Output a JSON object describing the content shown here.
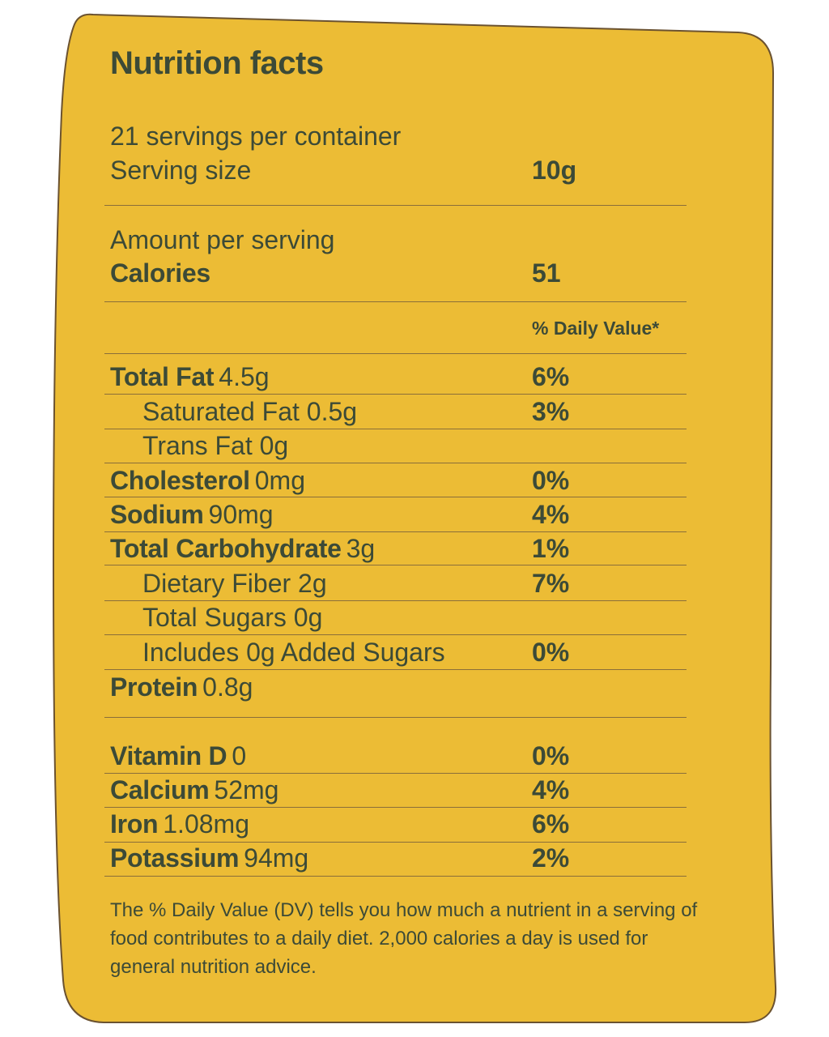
{
  "title": "Nutrition facts",
  "servings_per_container": "21 servings per container",
  "serving_size": {
    "label": "Serving size",
    "value": "10g"
  },
  "amount_per_serving": "Amount per serving",
  "calories": {
    "label": "Calories",
    "value": "51"
  },
  "daily_value_header": "% Daily Value*",
  "nutrients": [
    {
      "name": "Total Fat",
      "amount": "4.5g",
      "dv": "6%"
    },
    {
      "name": "Saturated Fat 0.5g",
      "amount": "",
      "dv": "3%"
    },
    {
      "name": "Trans Fat 0g",
      "amount": "",
      "dv": ""
    },
    {
      "name": "Cholesterol",
      "amount": "0mg",
      "dv": "0%"
    },
    {
      "name": "Sodium",
      "amount": "90mg",
      "dv": "4%"
    },
    {
      "name": "Total Carbohydrate",
      "amount": "3g",
      "dv": "1%"
    },
    {
      "name": "Dietary Fiber 2g",
      "amount": "",
      "dv": "7%"
    },
    {
      "name": "Total Sugars 0g",
      "amount": "",
      "dv": ""
    },
    {
      "name": "Includes 0g Added Sugars",
      "amount": "",
      "dv": "0%"
    },
    {
      "name": "Protein",
      "amount": "0.8g",
      "dv": ""
    }
  ],
  "vitamins": [
    {
      "name": "Vitamin D",
      "amount": "0",
      "dv": "0%"
    },
    {
      "name": "Calcium",
      "amount": "52mg",
      "dv": "4%"
    },
    {
      "name": "Iron",
      "amount": "1.08mg",
      "dv": "6%"
    },
    {
      "name": "Potassium",
      "amount": "94mg",
      "dv": "2%"
    }
  ],
  "footnote": "The % Daily Value (DV) tells you how much a nutrient in a serving of food contributes to a daily diet. 2,000 calories a day is used for general nutrition advice.",
  "colors": {
    "card_fill": "#ecbc35",
    "card_stroke": "#6b5230",
    "text": "#3c4a37",
    "rule": "#8a6e3a"
  }
}
